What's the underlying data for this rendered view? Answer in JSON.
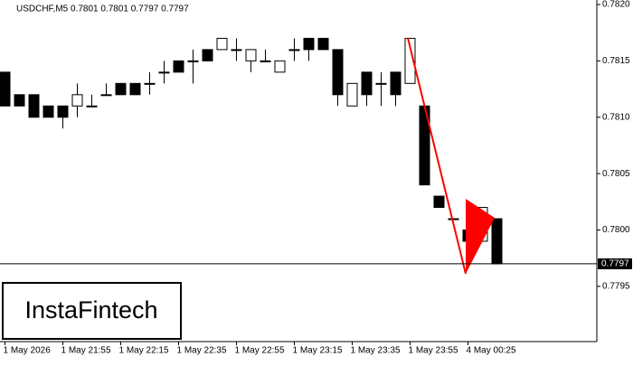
{
  "chart_data": {
    "type": "candlestick",
    "title": "USDCHF,M5  0.7801 0.7801 0.7797 0.7797",
    "brand": "InstaFintech",
    "categories": [
      "1 May 2026",
      null,
      null,
      null,
      "1 May 21:55",
      null,
      null,
      null,
      "1 May 22:15",
      null,
      null,
      null,
      "1 May 22:35",
      null,
      null,
      null,
      "1 May 22:55",
      null,
      null,
      null,
      "1 May 23:15",
      null,
      null,
      null,
      "1 May 23:35",
      null,
      null,
      null,
      "1 May 23:55",
      null,
      null,
      null,
      "4 May 00:25",
      null,
      null
    ],
    "open": [
      0.7814,
      0.7812,
      0.7812,
      0.7811,
      0.7811,
      0.7811,
      0.7811,
      0.7812,
      0.7813,
      0.7813,
      0.7813,
      0.7814,
      0.7815,
      0.7815,
      0.7816,
      0.7816,
      0.7816,
      0.7815,
      0.7815,
      0.7814,
      0.7816,
      0.7817,
      0.7817,
      0.7816,
      0.7811,
      0.7814,
      0.7813,
      0.7814,
      0.7813,
      0.7811,
      0.7803,
      0.7801,
      0.78,
      0.7799,
      0.7801
    ],
    "high": [
      0.7814,
      0.7812,
      0.7812,
      0.7811,
      0.7811,
      0.7813,
      0.7812,
      0.7813,
      0.7813,
      0.7813,
      0.7814,
      0.7815,
      0.7815,
      0.7816,
      0.7816,
      0.7817,
      0.7817,
      0.7816,
      0.7816,
      0.7815,
      0.7817,
      0.7817,
      0.7817,
      0.7816,
      0.7813,
      0.7814,
      0.7814,
      0.7814,
      0.7817,
      0.7811,
      0.7803,
      0.7801,
      0.78,
      0.7802,
      0.7801
    ],
    "low": [
      0.7811,
      0.7811,
      0.781,
      0.781,
      0.7809,
      0.781,
      0.7811,
      0.7812,
      0.7812,
      0.7812,
      0.7812,
      0.7813,
      0.7814,
      0.7813,
      0.7815,
      0.7816,
      0.7815,
      0.7814,
      0.7815,
      0.7814,
      0.7815,
      0.7815,
      0.7816,
      0.7811,
      0.7811,
      0.7811,
      0.7811,
      0.7811,
      0.7813,
      0.7804,
      0.7802,
      0.7801,
      0.7799,
      0.7799,
      0.7797
    ],
    "close": [
      0.7811,
      0.7811,
      0.781,
      0.781,
      0.781,
      0.7812,
      0.7811,
      0.7812,
      0.7812,
      0.7812,
      0.7813,
      0.7814,
      0.7814,
      0.7815,
      0.7815,
      0.7817,
      0.7816,
      0.7816,
      0.7815,
      0.7815,
      0.7816,
      0.7816,
      0.7816,
      0.7812,
      0.7813,
      0.7812,
      0.7813,
      0.7812,
      0.7817,
      0.7804,
      0.7802,
      0.7801,
      0.7799,
      0.7802,
      0.7797
    ],
    "ylim": [
      0.77901,
      0.78204
    ],
    "yticks": [
      {
        "value": 0.7795,
        "label": "0.7795"
      },
      {
        "value": 0.78,
        "label": "0.7800"
      },
      {
        "value": 0.7805,
        "label": "0.7805"
      },
      {
        "value": 0.781,
        "label": "0.7810"
      },
      {
        "value": 0.7815,
        "label": "0.7815"
      },
      {
        "value": 0.782,
        "label": "0.7820"
      }
    ],
    "current_price": 0.7797,
    "bull_color": "#ffffff",
    "bear_color": "#000000",
    "pattern_color": "#ff0000"
  }
}
